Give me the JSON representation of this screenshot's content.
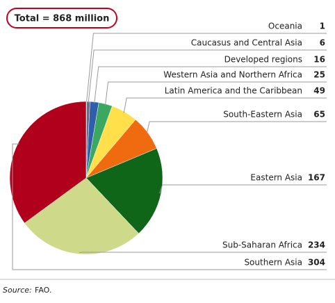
{
  "chart_data": {
    "type": "pie",
    "title": "Total = 868 million",
    "categories": [
      "Oceania",
      "Caucasus and Central Asia",
      "Developed regions",
      "Western Asia and Northern Africa",
      "Latin America and the Caribbean",
      "South-Eastern Asia",
      "Eastern Asia",
      "Sub-Saharan Africa",
      "Southern Asia"
    ],
    "values": [
      1,
      6,
      16,
      25,
      49,
      65,
      167,
      234,
      304
    ],
    "colors": [
      "#9a9a9a",
      "#6a6a8a",
      "#2f5fa8",
      "#3aa860",
      "#ffe04a",
      "#f06a10",
      "#0f6618",
      "#cfd98a",
      "#b0001c"
    ],
    "source_label": "Source:",
    "source": "FAO."
  }
}
